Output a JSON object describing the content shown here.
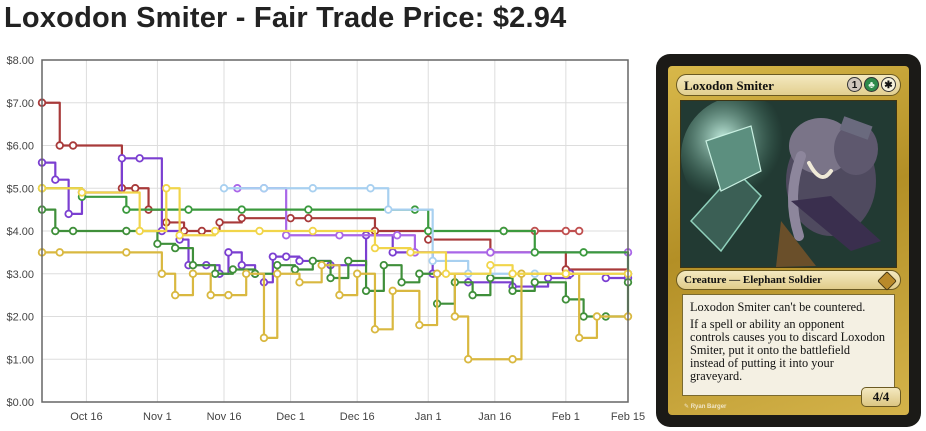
{
  "page": {
    "title": "Loxodon Smiter - Fair Trade Price: $2.94"
  },
  "chart_data": {
    "type": "line",
    "title": "",
    "xlabel": "",
    "ylabel": "",
    "x_start": "2012-10-06",
    "x_end": "2013-02-15",
    "ylim": [
      0,
      8
    ],
    "y_ticks": [
      0,
      1,
      2,
      3,
      4,
      5,
      6,
      7,
      8
    ],
    "y_tick_labels": [
      "$0.00",
      "$1.00",
      "$2.00",
      "$3.00",
      "$4.00",
      "$5.00",
      "$6.00",
      "$7.00",
      "$8.00"
    ],
    "x_tick_dates": [
      "2012-10-16",
      "2012-11-01",
      "2012-11-16",
      "2012-12-01",
      "2012-12-16",
      "2013-01-01",
      "2013-01-16",
      "2013-02-01",
      "2013-02-15"
    ],
    "x_tick_labels": [
      "Oct 16",
      "Nov 1",
      "Nov 16",
      "Dec 1",
      "Dec 16",
      "Jan 1",
      "Jan 16",
      "Feb 1",
      "Feb 15"
    ],
    "grid": true,
    "legend": "none",
    "series": [
      {
        "color": "#a83a3a",
        "points": [
          [
            "2012-10-06",
            7.0
          ],
          [
            "2012-10-10",
            6.0
          ],
          [
            "2012-10-13",
            6.0
          ],
          [
            "2012-10-24",
            5.0
          ],
          [
            "2012-10-27",
            5.0
          ],
          [
            "2012-10-30",
            4.5
          ],
          [
            "2012-11-03",
            4.2
          ],
          [
            "2012-11-07",
            4.0
          ],
          [
            "2012-11-11",
            4.0
          ],
          [
            "2012-11-15",
            4.2
          ],
          [
            "2012-11-20",
            4.3
          ],
          [
            "2012-12-01",
            4.3
          ],
          [
            "2012-12-05",
            4.3
          ],
          [
            "2012-12-20",
            4.0
          ],
          [
            "2013-01-01",
            3.8
          ],
          [
            "2013-01-15",
            3.5
          ],
          [
            "2013-02-01",
            3.1
          ],
          [
            "2013-02-15",
            3.0
          ]
        ]
      },
      {
        "color": "#c05050",
        "points": [
          [
            "2013-01-18",
            4.0
          ],
          [
            "2013-01-25",
            4.0
          ],
          [
            "2013-02-01",
            4.0
          ],
          [
            "2013-02-04",
            4.0
          ]
        ]
      },
      {
        "color": "#7b3fd1",
        "points": [
          [
            "2012-10-06",
            5.6
          ],
          [
            "2012-10-09",
            5.2
          ],
          [
            "2012-10-12",
            4.4
          ],
          [
            "2012-10-15",
            4.9
          ],
          [
            "2012-10-24",
            5.7
          ],
          [
            "2012-10-28",
            5.7
          ],
          [
            "2012-11-02",
            4.0
          ],
          [
            "2012-11-06",
            3.8
          ],
          [
            "2012-11-08",
            3.2
          ],
          [
            "2012-11-12",
            3.2
          ],
          [
            "2012-11-15",
            3.0
          ],
          [
            "2012-11-17",
            3.5
          ],
          [
            "2012-11-20",
            3.2
          ],
          [
            "2012-11-23",
            3.0
          ],
          [
            "2012-11-25",
            2.8
          ],
          [
            "2012-11-27",
            3.4
          ],
          [
            "2012-11-30",
            3.4
          ],
          [
            "2012-12-03",
            3.3
          ],
          [
            "2012-12-10",
            3.2
          ],
          [
            "2012-12-18",
            3.9
          ],
          [
            "2012-12-24",
            3.5
          ],
          [
            "2013-01-02",
            3.0
          ],
          [
            "2013-01-10",
            2.8
          ],
          [
            "2013-01-20",
            2.7
          ],
          [
            "2013-01-28",
            2.9
          ],
          [
            "2013-02-02",
            3.0
          ],
          [
            "2013-02-10",
            2.9
          ],
          [
            "2013-02-15",
            2.9
          ]
        ]
      },
      {
        "color": "#a966e8",
        "points": [
          [
            "2012-11-19",
            5.0
          ],
          [
            "2012-11-25",
            5.0
          ],
          [
            "2012-11-30",
            3.9
          ],
          [
            "2012-12-12",
            3.9
          ],
          [
            "2012-12-25",
            3.9
          ],
          [
            "2012-12-29",
            3.5
          ],
          [
            "2013-01-15",
            3.5
          ],
          [
            "2013-02-15",
            3.5
          ]
        ]
      },
      {
        "color": "#3f8f3a",
        "points": [
          [
            "2012-10-06",
            4.5
          ],
          [
            "2012-10-09",
            4.0
          ],
          [
            "2012-10-13",
            4.0
          ],
          [
            "2012-10-25",
            4.0
          ],
          [
            "2012-11-01",
            3.7
          ],
          [
            "2012-11-05",
            3.6
          ],
          [
            "2012-11-09",
            3.2
          ],
          [
            "2012-11-14",
            3.0
          ],
          [
            "2012-11-18",
            3.1
          ],
          [
            "2012-11-23",
            3.0
          ],
          [
            "2012-11-28",
            3.2
          ],
          [
            "2012-12-02",
            3.1
          ],
          [
            "2012-12-06",
            3.3
          ],
          [
            "2012-12-10",
            2.9
          ],
          [
            "2012-12-14",
            3.3
          ],
          [
            "2012-12-18",
            2.6
          ],
          [
            "2012-12-22",
            3.2
          ],
          [
            "2012-12-26",
            2.8
          ],
          [
            "2012-12-30",
            3.0
          ],
          [
            "2013-01-03",
            2.3
          ],
          [
            "2013-01-07",
            2.8
          ],
          [
            "2013-01-11",
            2.5
          ],
          [
            "2013-01-15",
            2.9
          ],
          [
            "2013-01-20",
            2.6
          ],
          [
            "2013-01-25",
            2.8
          ],
          [
            "2013-02-01",
            2.4
          ],
          [
            "2013-02-05",
            2.0
          ],
          [
            "2013-02-10",
            2.0
          ],
          [
            "2013-02-15",
            2.8
          ]
        ]
      },
      {
        "color": "#3b9a3e",
        "points": [
          [
            "2012-10-06",
            5.0
          ],
          [
            "2012-10-15",
            4.8
          ],
          [
            "2012-10-25",
            4.5
          ],
          [
            "2012-11-08",
            4.5
          ],
          [
            "2012-11-20",
            4.5
          ],
          [
            "2012-12-05",
            4.5
          ],
          [
            "2012-12-29",
            4.5
          ],
          [
            "2013-01-01",
            4.0
          ],
          [
            "2013-01-18",
            4.0
          ],
          [
            "2013-01-25",
            3.5
          ],
          [
            "2013-02-05",
            3.5
          ],
          [
            "2013-02-15",
            3.0
          ]
        ]
      },
      {
        "color": "#a8d0f0",
        "points": [
          [
            "2012-11-16",
            5.0
          ],
          [
            "2012-11-25",
            5.0
          ],
          [
            "2012-12-06",
            5.0
          ],
          [
            "2012-12-19",
            5.0
          ],
          [
            "2012-12-23",
            4.5
          ],
          [
            "2013-01-02",
            3.3
          ],
          [
            "2013-01-10",
            3.0
          ],
          [
            "2013-01-25",
            3.0
          ],
          [
            "2013-02-15",
            3.0
          ]
        ]
      },
      {
        "color": "#d9b840",
        "points": [
          [
            "2012-10-06",
            3.5
          ],
          [
            "2012-10-10",
            3.5
          ],
          [
            "2012-10-25",
            3.5
          ],
          [
            "2012-11-02",
            3.0
          ],
          [
            "2012-11-05",
            2.5
          ],
          [
            "2012-11-09",
            3.0
          ],
          [
            "2012-11-13",
            2.5
          ],
          [
            "2012-11-17",
            2.5
          ],
          [
            "2012-11-21",
            3.0
          ],
          [
            "2012-11-25",
            1.5
          ],
          [
            "2012-11-28",
            3.0
          ],
          [
            "2012-12-03",
            2.8
          ],
          [
            "2012-12-08",
            3.2
          ],
          [
            "2012-12-12",
            2.5
          ],
          [
            "2012-12-16",
            3.0
          ],
          [
            "2012-12-20",
            1.7
          ],
          [
            "2012-12-24",
            2.6
          ],
          [
            "2012-12-30",
            1.8
          ],
          [
            "2013-01-03",
            3.0
          ],
          [
            "2013-01-07",
            2.0
          ],
          [
            "2013-01-10",
            1.0
          ],
          [
            "2013-01-20",
            1.0
          ],
          [
            "2013-01-22",
            3.0
          ],
          [
            "2013-02-01",
            3.0
          ],
          [
            "2013-02-04",
            1.5
          ],
          [
            "2013-02-08",
            2.0
          ],
          [
            "2013-02-15",
            2.0
          ]
        ]
      },
      {
        "color": "#f1d54a",
        "points": [
          [
            "2012-10-06",
            5.0
          ],
          [
            "2012-10-15",
            4.9
          ],
          [
            "2012-10-28",
            4.0
          ],
          [
            "2012-11-03",
            5.0
          ],
          [
            "2012-11-06",
            3.9
          ],
          [
            "2012-11-14",
            4.0
          ],
          [
            "2012-11-24",
            4.0
          ],
          [
            "2012-12-06",
            4.0
          ],
          [
            "2012-12-20",
            3.6
          ],
          [
            "2012-12-28",
            3.5
          ],
          [
            "2013-01-05",
            3.0
          ],
          [
            "2013-01-15",
            3.2
          ],
          [
            "2013-01-20",
            3.0
          ],
          [
            "2013-02-01",
            3.0
          ],
          [
            "2013-02-15",
            3.0
          ]
        ]
      }
    ]
  },
  "card": {
    "name": "Loxodon Smiter",
    "mana_cost": [
      "1",
      "G",
      "W"
    ],
    "type_line": "Creature — Elephant Soldier",
    "rules_text": [
      "Loxodon Smiter can't be countered.",
      "If a spell or ability an opponent controls causes you to discard Loxodon Smiter, put it onto the battlefield instead of putting it into your graveyard."
    ],
    "artist": "Ryan Barger",
    "power_toughness": "4/4",
    "colors": {
      "frame": "#c9a53a",
      "border": "#1b1a17"
    }
  }
}
